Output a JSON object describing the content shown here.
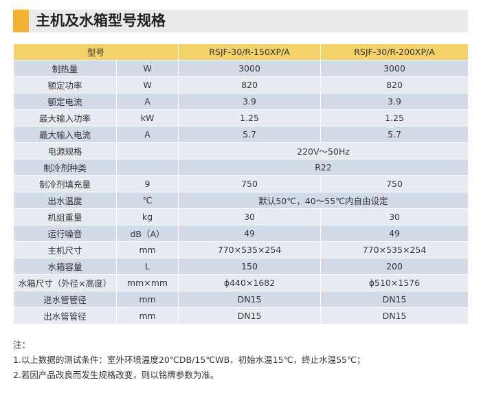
{
  "header": {
    "title": "主机及水箱型号规格"
  },
  "table": {
    "head": {
      "name": "型号",
      "model1": "RSJF-30/R-150XP/A",
      "model2": "RSJF-30/R-200XP/A"
    },
    "rows": [
      {
        "name": "制热量",
        "unit": "W",
        "v1": "3000",
        "v2": "3000"
      },
      {
        "name": "额定功率",
        "unit": "W",
        "v1": "820",
        "v2": "820"
      },
      {
        "name": "额定电流",
        "unit": "A",
        "v1": "3.9",
        "v2": "3.9"
      },
      {
        "name": "最大输入功率",
        "unit": "kW",
        "v1": "1.25",
        "v2": "1.25"
      },
      {
        "name": "最大输入电流",
        "unit": "A",
        "v1": "5.7",
        "v2": "5.7"
      },
      {
        "name": "电源规格",
        "unit": "",
        "merged": "220V～50Hz"
      },
      {
        "name": "制冷剂种类",
        "unit": "",
        "merged": "R22"
      },
      {
        "name": "制冷剂填充量",
        "unit": "9",
        "v1": "750",
        "v2": "750"
      },
      {
        "name": "出水温度",
        "unit": "℃",
        "merged": "默认50℃，40～55℃内自由设定"
      },
      {
        "name": "机组重量",
        "unit": "kg",
        "v1": "30",
        "v2": "30"
      },
      {
        "name": "运行噪音",
        "unit": "dB（A）",
        "v1": "49",
        "v2": "49"
      },
      {
        "name": "主机尺寸",
        "unit": "mm",
        "v1": "770×535×254",
        "v2": "770×535×254"
      },
      {
        "name": "水箱容量",
        "unit": "L",
        "v1": "150",
        "v2": "200"
      },
      {
        "name": "水箱尺寸（外径×高度）",
        "unit": "mm×mm",
        "v1": "ϕ440×1682",
        "v2": "ϕ510×1576"
      },
      {
        "name": "进水管管径",
        "unit": "mm",
        "v1": "DN15",
        "v2": "DN15"
      },
      {
        "name": "出水管管径",
        "unit": "mm",
        "v1": "DN15",
        "v2": "DN15"
      }
    ]
  },
  "notes": {
    "title": "注：",
    "lines": [
      "1.以上数据的测试条件：室外环境温度20℃DB/15℃WB，初始水温15℃，终止水温55℃；",
      "2.若因产品改良而发生规格改变，则以铭牌参数为准。"
    ]
  },
  "colors": {
    "accent": "#f5b335",
    "header_bar": "#ebebeb",
    "table_head": "#f4d26a",
    "row_odd": "#d4dbe8",
    "row_even": "#e8ecf2"
  }
}
